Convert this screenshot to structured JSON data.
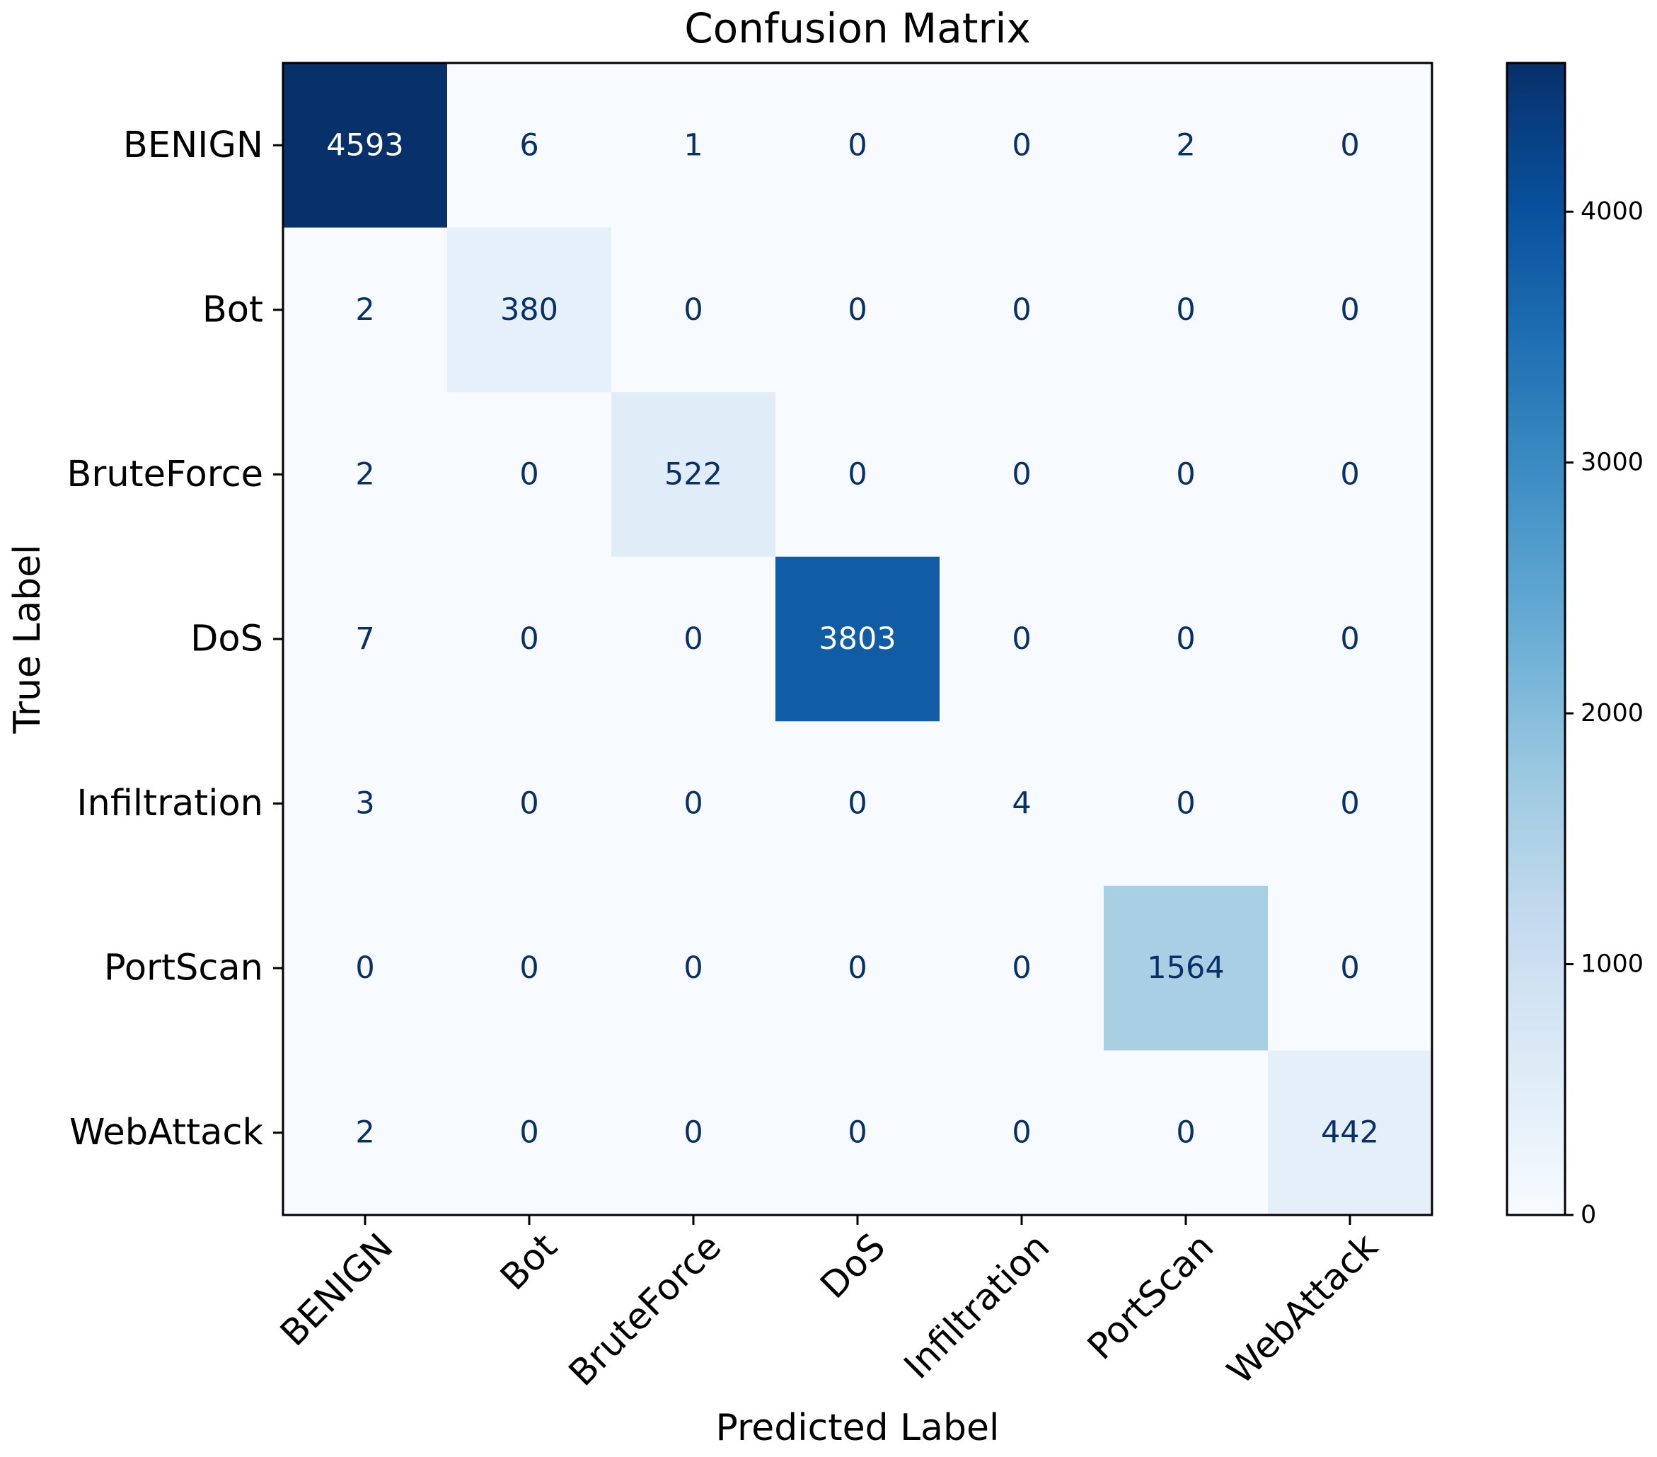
{
  "chart_data": {
    "type": "heatmap",
    "title": "Confusion Matrix",
    "xlabel": "Predicted Label",
    "ylabel": "True Label",
    "x_categories": [
      "BENIGN",
      "Bot",
      "BruteForce",
      "DoS",
      "Infiltration",
      "PortScan",
      "WebAttack"
    ],
    "y_categories": [
      "BENIGN",
      "Bot",
      "BruteForce",
      "DoS",
      "Infiltration",
      "PortScan",
      "WebAttack"
    ],
    "values": [
      [
        4593,
        6,
        1,
        0,
        0,
        2,
        0
      ],
      [
        2,
        380,
        0,
        0,
        0,
        0,
        0
      ],
      [
        2,
        0,
        522,
        0,
        0,
        0,
        0
      ],
      [
        7,
        0,
        0,
        3803,
        0,
        0,
        0
      ],
      [
        3,
        0,
        0,
        0,
        4,
        0,
        0
      ],
      [
        0,
        0,
        0,
        0,
        0,
        1564,
        0
      ],
      [
        2,
        0,
        0,
        0,
        0,
        0,
        442
      ]
    ],
    "colormap": "Blues",
    "color_range": [
      0,
      4593
    ],
    "colorbar_ticks": [
      "0",
      "1000",
      "2000",
      "3000",
      "4000"
    ],
    "colorbar_tick_values": [
      0,
      1000,
      2000,
      3000,
      4000
    ],
    "grid": false
  }
}
